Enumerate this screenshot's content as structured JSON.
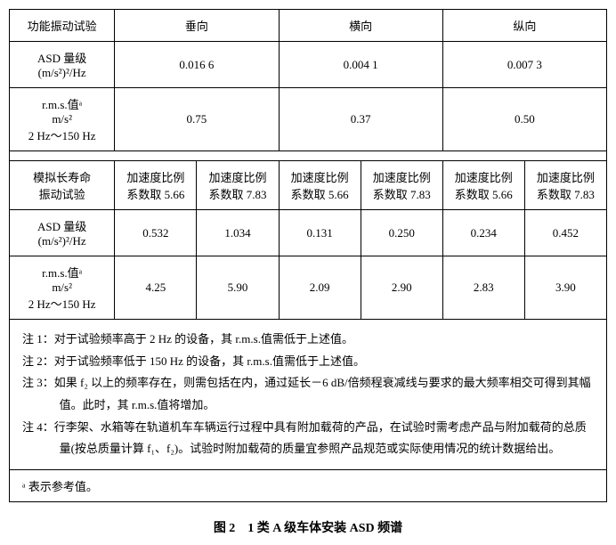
{
  "table1": {
    "header": {
      "col1": "功能振动试验",
      "col2": "垂向",
      "col3": "横向",
      "col4": "纵向"
    },
    "row1": {
      "label_line1": "ASD 量级",
      "label_line2": "(m/s²)²/Hz",
      "v1": "0.016 6",
      "v2": "0.004 1",
      "v3": "0.007 3"
    },
    "row2": {
      "label_line1": "r.m.s.值ᵃ",
      "label_line2": "m/s²",
      "label_line3": "2 Hz～150 Hz",
      "v1": "0.75",
      "v2": "0.37",
      "v3": "0.50"
    }
  },
  "table2": {
    "header": {
      "col1_line1": "模拟长寿命",
      "col1_line2": "振动试验",
      "sub_a": "加速度比例",
      "sub_b1": "系数取 5.66",
      "sub_b2": "系数取 7.83"
    },
    "row1": {
      "label_line1": "ASD 量级",
      "label_line2": "(m/s²)²/Hz",
      "v1": "0.532",
      "v2": "1.034",
      "v3": "0.131",
      "v4": "0.250",
      "v5": "0.234",
      "v6": "0.452"
    },
    "row2": {
      "label_line1": "r.m.s.值ᵃ",
      "label_line2": "m/s²",
      "label_line3": "2 Hz～150 Hz",
      "v1": "4.25",
      "v2": "5.90",
      "v3": "2.09",
      "v4": "2.90",
      "v5": "2.83",
      "v6": "3.90"
    }
  },
  "notes": {
    "n1_label": "注 1：",
    "n1_text": "对于试验频率高于 2 Hz 的设备，其 r.m.s.值需低于上述值。",
    "n2_label": "注 2：",
    "n2_text": "对于试验频率低于 150 Hz 的设备，其 r.m.s.值需低于上述值。",
    "n3_label": "注 3：",
    "n3_text": "如果 f₂ 以上的频率存在，则需包括在内，通过延长－6 dB/倍频程衰减线与要求的最大频率相交可得到其幅值。此时，其 r.m.s.值将增加。",
    "n4_label": "注 4：",
    "n4_text": "行李架、水箱等在轨道机车车辆运行过程中具有附加载荷的产品，在试验时需考虑产品与附加载荷的总质量(按总质量计算 f₁、f₂)。试验时附加载荷的质量宜参照产品规范或实际使用情况的统计数据给出。"
  },
  "footnote": {
    "marker": "ᵃ",
    "text": " 表示参考值。"
  },
  "caption": "图 2　1 类 A 级车体安装 ASD 频谱"
}
